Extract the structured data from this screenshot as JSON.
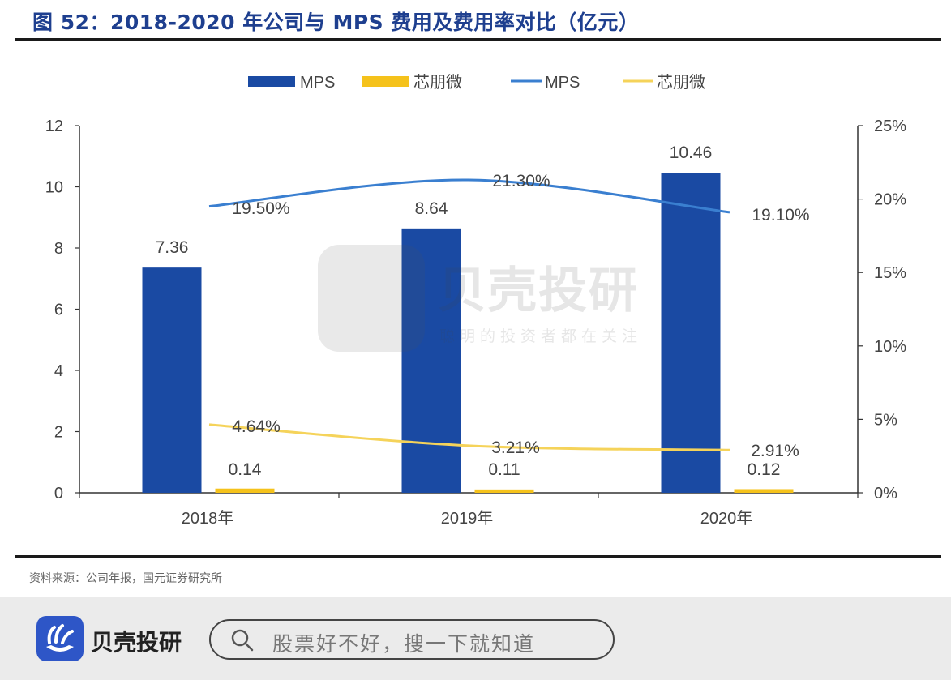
{
  "figure_title": "图 52：2018-2020 年公司与 MPS 费用及费用率对比（亿元）",
  "source_note": "资料来源：公司年报，国元证券研究所",
  "watermark": {
    "name": "贝壳投研",
    "slogan": "聪明的投资者都在关注"
  },
  "footer": {
    "brand_name": "贝壳投研",
    "search_placeholder": "股票好不好，搜一下就知道"
  },
  "colors": {
    "title": "#1e3f8f",
    "mps_bar": "#1a4aa3",
    "xinpengwei_bar": "#f5c21b",
    "mps_line": "#3a7fd0",
    "xinpengwei_line": "#f5d35a",
    "brand": "#2e56c7"
  },
  "chart_data": {
    "type": "bar+line",
    "categories": [
      "2018年",
      "2019年",
      "2020年"
    ],
    "y_left": {
      "ticks": [
        "0",
        "2",
        "4",
        "6",
        "8",
        "10",
        "12"
      ],
      "ylim": [
        0,
        12
      ]
    },
    "y_right": {
      "ticks": [
        "0%",
        "5%",
        "10%",
        "15%",
        "20%",
        "25%"
      ],
      "ylim": [
        0,
        25
      ]
    },
    "bar_series": [
      {
        "name": "MPS",
        "values": [
          7.36,
          8.64,
          10.46
        ],
        "labels": [
          "7.36",
          "8.64",
          "10.46"
        ]
      },
      {
        "name": "芯朋微",
        "values": [
          0.14,
          0.11,
          0.12
        ],
        "labels": [
          "0.14",
          "0.11",
          "0.12"
        ]
      }
    ],
    "line_series": [
      {
        "name": "MPS",
        "values": [
          19.5,
          21.3,
          19.1
        ],
        "labels": [
          "19.50%",
          "21.30%",
          "19.10%"
        ]
      },
      {
        "name": "芯朋微",
        "values": [
          4.64,
          3.21,
          2.91
        ],
        "labels": [
          "4.64%",
          "3.21%",
          "2.91%"
        ]
      }
    ],
    "legend": {
      "position": "top-center",
      "items": [
        "MPS",
        "芯朋微",
        "MPS",
        "芯朋微"
      ]
    },
    "grid": false
  }
}
